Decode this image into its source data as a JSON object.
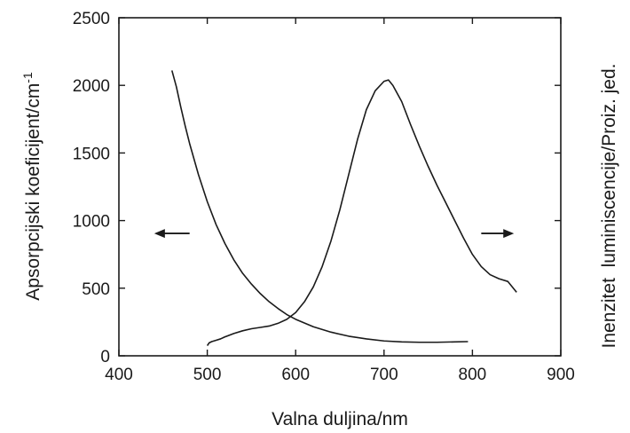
{
  "chart_data": {
    "type": "line",
    "title": "",
    "xlabel": "Valna duljina/nm",
    "ylabel_left": "Apsorpcijski koeficijent/cm",
    "ylabel_left_sup": "-1",
    "ylabel_right": "Inenzitet  luminiscencije/Proiz. jed.",
    "xlim": [
      400,
      900
    ],
    "ylim": [
      0,
      2500
    ],
    "x_ticks": [
      400,
      500,
      600,
      700,
      800,
      900
    ],
    "y_ticks": [
      0,
      500,
      1000,
      1500,
      2000,
      2500
    ],
    "grid": false,
    "series": [
      {
        "axis": "left",
        "direction": "left",
        "x": [
          460,
          465,
          470,
          475,
          480,
          490,
          500,
          510,
          520,
          530,
          540,
          550,
          560,
          570,
          580,
          590,
          600,
          620,
          640,
          660,
          680,
          700,
          720,
          740,
          760,
          780,
          795
        ],
        "y": [
          2110,
          1990,
          1840,
          1700,
          1570,
          1340,
          1140,
          970,
          830,
          710,
          610,
          530,
          460,
          400,
          350,
          305,
          270,
          215,
          175,
          145,
          125,
          110,
          103,
          100,
          100,
          103,
          105
        ]
      },
      {
        "axis": "right",
        "direction": "right",
        "x": [
          500,
          502,
          505,
          510,
          515,
          520,
          530,
          540,
          550,
          560,
          570,
          580,
          590,
          600,
          610,
          620,
          630,
          640,
          650,
          660,
          670,
          680,
          690,
          700,
          705,
          710,
          720,
          730,
          740,
          750,
          760,
          770,
          780,
          790,
          800,
          810,
          820,
          830,
          840,
          845,
          850
        ],
        "y": [
          75,
          95,
          105,
          115,
          125,
          140,
          165,
          185,
          200,
          210,
          220,
          240,
          270,
          320,
          400,
          510,
          660,
          850,
          1080,
          1340,
          1600,
          1820,
          1960,
          2030,
          2040,
          2000,
          1880,
          1710,
          1550,
          1400,
          1260,
          1130,
          1000,
          870,
          750,
          660,
          600,
          570,
          550,
          510,
          470
        ]
      }
    ]
  }
}
